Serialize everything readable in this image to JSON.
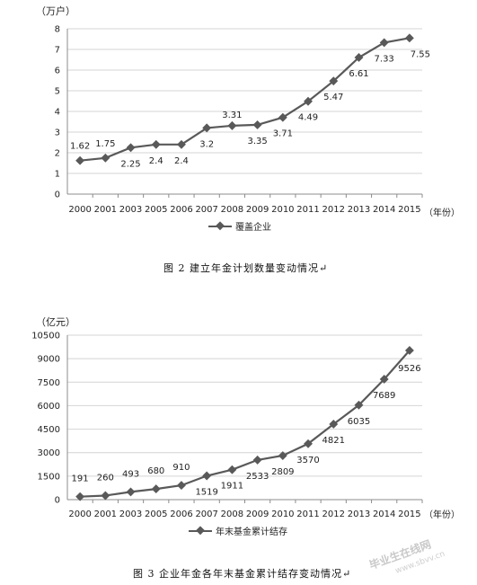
{
  "chart_data": [
    {
      "type": "line",
      "unit_label": "（万户）",
      "categories": [
        "2000",
        "2001",
        "2003",
        "2005",
        "2006",
        "2007",
        "2008",
        "2009",
        "2010",
        "2011",
        "2012",
        "2013",
        "2014",
        "2015"
      ],
      "series": [
        {
          "name": "覆盖企业",
          "values": [
            1.62,
            1.75,
            2.25,
            2.4,
            2.4,
            3.2,
            3.31,
            3.35,
            3.71,
            4.49,
            5.47,
            6.61,
            7.33,
            7.55
          ],
          "labels": [
            "1.62",
            "1.75",
            "2.25",
            "2.4",
            "2.4",
            "3.2",
            "3.31",
            "3.35",
            "3.71",
            "4.49",
            "5.47",
            "6.61",
            "7.33",
            "7.55"
          ]
        }
      ],
      "yticks": [
        "0",
        "1",
        "2",
        "3",
        "4",
        "5",
        "6",
        "7",
        "8"
      ],
      "ylim": [
        0,
        8
      ],
      "x_unit": "（年份）",
      "caption": "图 2   建立年金计划数量变动情况↵",
      "color": "#595959",
      "legend": "bottom"
    },
    {
      "type": "line",
      "unit_label": "（亿元）",
      "categories": [
        "2000",
        "2001",
        "2003",
        "2005",
        "2006",
        "2007",
        "2008",
        "2009",
        "2010",
        "2011",
        "2012",
        "2013",
        "2014",
        "2015"
      ],
      "series": [
        {
          "name": "年末基金累计结存",
          "values": [
            191,
            260,
            493,
            680,
            910,
            1519,
            1911,
            2533,
            2809,
            3570,
            4821,
            6035,
            7689,
            9526
          ],
          "labels": [
            "191",
            "260",
            "493",
            "680",
            "910",
            "1519",
            "1911",
            "2533",
            "2809",
            "3570",
            "4821",
            "6035",
            "7689",
            "9526"
          ]
        }
      ],
      "yticks": [
        "0",
        "1500",
        "3000",
        "4500",
        "6000",
        "7500",
        "9000",
        "10500"
      ],
      "ylim": [
        0,
        10500
      ],
      "x_unit": "（年份）",
      "caption": "图 3   企业年金各年末基金累计结存变动情况↵",
      "color": "#595959",
      "legend": "bottom"
    }
  ],
  "watermark": {
    "text": "毕业生在线网",
    "sub": "www.sbvv.cn"
  }
}
